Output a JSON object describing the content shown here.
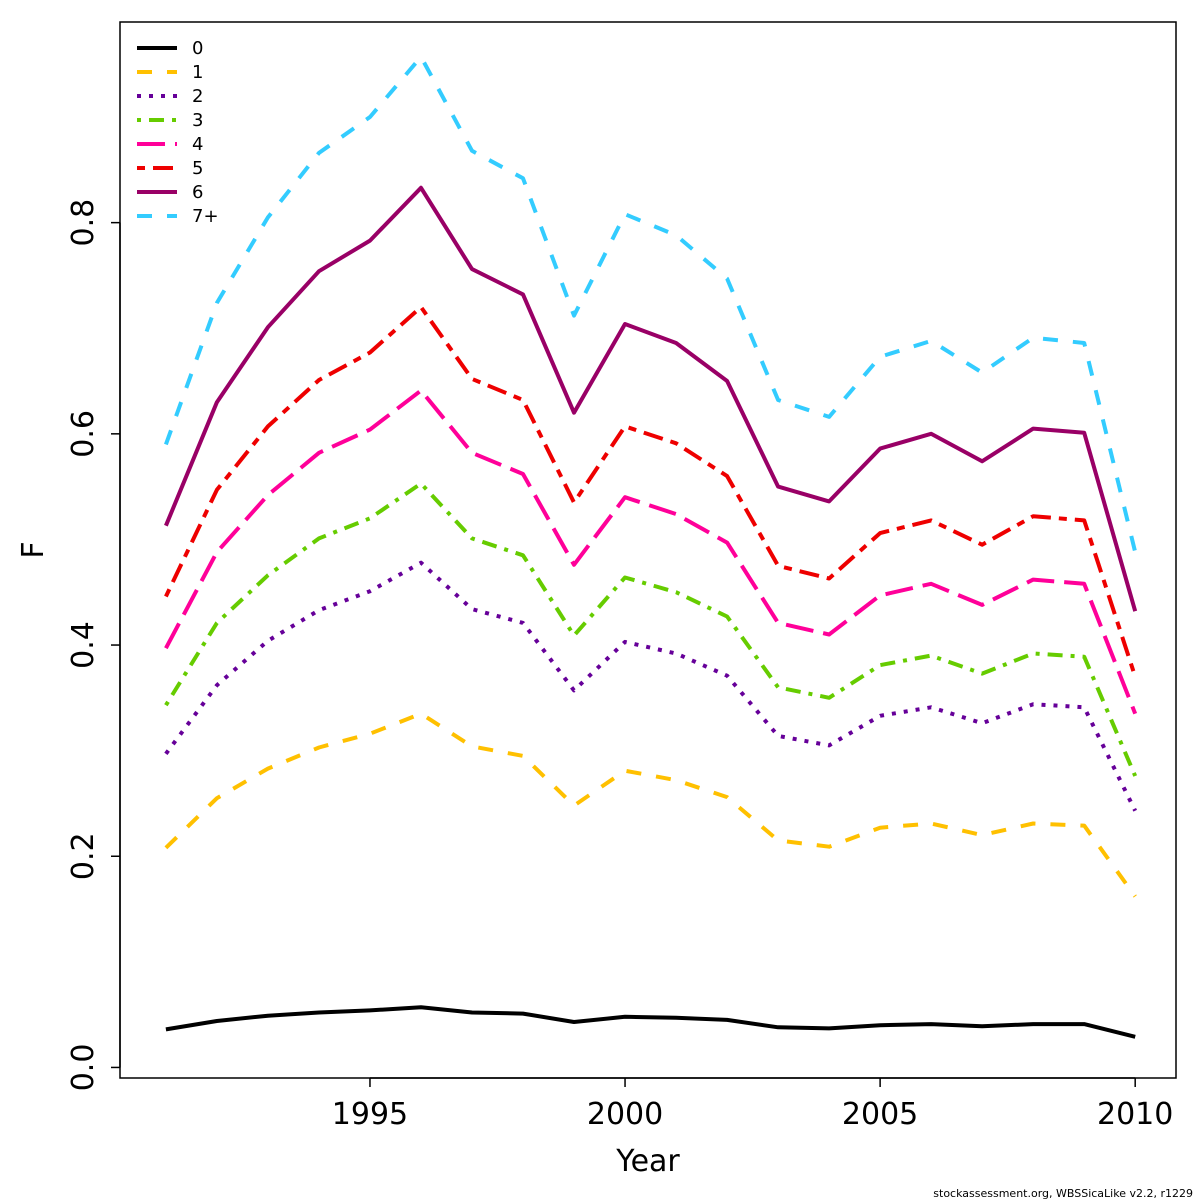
{
  "chart_data": {
    "type": "line",
    "xlabel": "Year",
    "ylabel": "F",
    "xlim": [
      1990.1,
      2010.8
    ],
    "ylim": [
      -0.01,
      0.99
    ],
    "x_ticks": [
      1995,
      2000,
      2005,
      2010
    ],
    "x_tick_labels": [
      "1995",
      "2000",
      "2005",
      "2010"
    ],
    "y_ticks": [
      0.0,
      0.2,
      0.4,
      0.6,
      0.8
    ],
    "y_tick_labels": [
      "0.0",
      "0.2",
      "0.4",
      "0.6",
      "0.8"
    ],
    "legend_position": "top-left",
    "grid": false,
    "x": [
      1991,
      1992,
      1993,
      1994,
      1995,
      1996,
      1997,
      1998,
      1999,
      2000,
      2001,
      2002,
      2003,
      2004,
      2005,
      2006,
      2007,
      2008,
      2009,
      2010
    ],
    "series": [
      {
        "name": "0",
        "color": "#000000",
        "dash": "solid",
        "values": [
          0.036,
          0.044,
          0.049,
          0.052,
          0.054,
          0.057,
          0.052,
          0.051,
          0.043,
          0.048,
          0.047,
          0.045,
          0.038,
          0.037,
          0.04,
          0.041,
          0.039,
          0.041,
          0.041,
          0.029
        ]
      },
      {
        "name": "1",
        "color": "#FFC000",
        "dash": "dashed",
        "values": [
          0.208,
          0.255,
          0.283,
          0.303,
          0.316,
          0.335,
          0.304,
          0.295,
          0.248,
          0.281,
          0.272,
          0.256,
          0.215,
          0.209,
          0.227,
          0.231,
          0.22,
          0.231,
          0.229,
          0.162
        ]
      },
      {
        "name": "2",
        "color": "#660099",
        "dash": "dotted",
        "values": [
          0.297,
          0.362,
          0.404,
          0.433,
          0.451,
          0.478,
          0.434,
          0.421,
          0.357,
          0.403,
          0.392,
          0.371,
          0.314,
          0.305,
          0.333,
          0.341,
          0.326,
          0.344,
          0.341,
          0.243
        ]
      },
      {
        "name": "3",
        "color": "#66CC00",
        "dash": "dotdash",
        "values": [
          0.343,
          0.421,
          0.466,
          0.501,
          0.52,
          0.553,
          0.501,
          0.485,
          0.409,
          0.464,
          0.45,
          0.427,
          0.36,
          0.35,
          0.381,
          0.39,
          0.373,
          0.392,
          0.389,
          0.276
        ]
      },
      {
        "name": "4",
        "color": "#FF0099",
        "dash": "longdash",
        "values": [
          0.397,
          0.488,
          0.542,
          0.582,
          0.604,
          0.641,
          0.582,
          0.562,
          0.476,
          0.54,
          0.524,
          0.497,
          0.421,
          0.41,
          0.447,
          0.458,
          0.438,
          0.462,
          0.458,
          0.335
        ]
      },
      {
        "name": "5",
        "color": "#EE0000",
        "dash": "twodash",
        "values": [
          0.446,
          0.547,
          0.607,
          0.651,
          0.677,
          0.72,
          0.652,
          0.632,
          0.535,
          0.607,
          0.591,
          0.56,
          0.475,
          0.463,
          0.506,
          0.518,
          0.495,
          0.522,
          0.518,
          0.37
        ]
      },
      {
        "name": "6",
        "color": "#990066",
        "dash": "solid",
        "values": [
          0.513,
          0.63,
          0.701,
          0.754,
          0.783,
          0.833,
          0.756,
          0.732,
          0.62,
          0.704,
          0.686,
          0.65,
          0.55,
          0.536,
          0.586,
          0.6,
          0.574,
          0.605,
          0.601,
          0.432
        ]
      },
      {
        "name": "7+",
        "color": "#33CCFF",
        "dash": "dashed",
        "values": [
          0.59,
          0.724,
          0.805,
          0.866,
          0.9,
          0.957,
          0.868,
          0.842,
          0.712,
          0.808,
          0.788,
          0.747,
          0.632,
          0.616,
          0.673,
          0.688,
          0.658,
          0.691,
          0.686,
          0.488
        ]
      }
    ]
  },
  "footnote": "stockassessment.org, WBSSicaLike  v2.2, r1229"
}
